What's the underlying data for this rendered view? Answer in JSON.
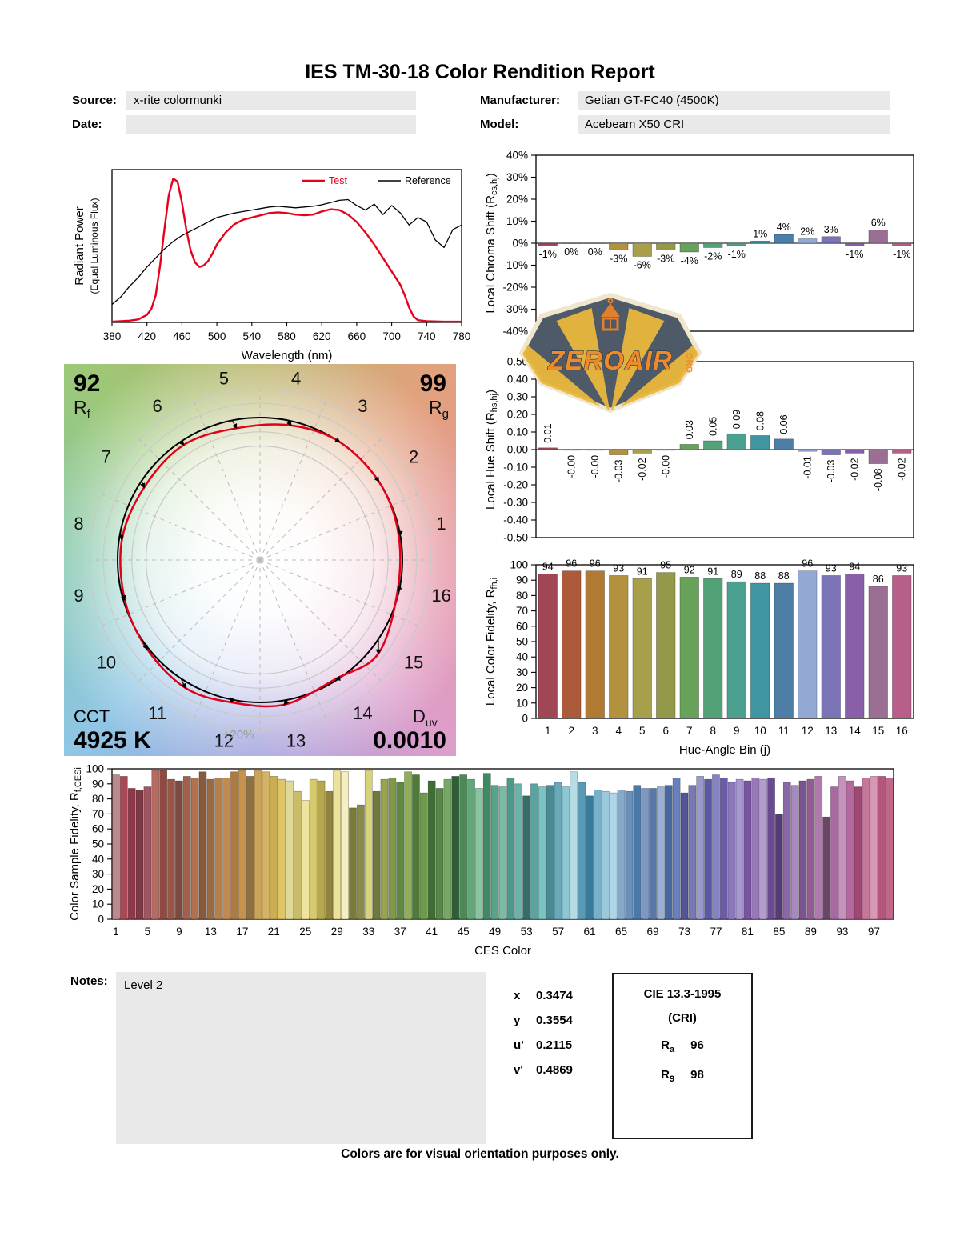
{
  "title": "IES TM-30-18 Color Rendition Report",
  "header": {
    "source_label": "Source:",
    "source_value": "x-rite colormunki",
    "date_label": "Date:",
    "date_value": "",
    "manufacturer_label": "Manufacturer:",
    "manufacturer_value": "Getian GT-FC40 (4500K)",
    "model_label": "Model:",
    "model_value": "Acebeam X50 CRI"
  },
  "watermark": {
    "text": "ZEROAIR",
    "suffix": ".ORG"
  },
  "cvg": {
    "rf": {
      "value": "92",
      "label": "R",
      "sub": "f"
    },
    "rg": {
      "value": "99",
      "label": "R",
      "sub": "g"
    },
    "cct": {
      "label": "CCT",
      "value": "4925 K"
    },
    "duv": {
      "label": "D",
      "sub": "uv",
      "value": "0.0010"
    },
    "ring_label": "+20%",
    "bin_numbers": [
      "1",
      "2",
      "3",
      "4",
      "5",
      "6",
      "7",
      "8",
      "9",
      "10",
      "11",
      "12",
      "13",
      "14",
      "15",
      "16"
    ]
  },
  "chart_data": [
    {
      "id": "spd",
      "type": "line",
      "xlabel": "Wavelength (nm)",
      "ylabel_lines": [
        "Radiant Power",
        "(Equal Luminous Flux)"
      ],
      "xlim": [
        380,
        780
      ],
      "ylim": [
        0,
        1.02
      ],
      "x_ticks": [
        380,
        420,
        460,
        500,
        540,
        580,
        620,
        660,
        700,
        740,
        780
      ],
      "legend": [
        {
          "name": "Test",
          "color": "#e8001c"
        },
        {
          "name": "Reference",
          "color": "#000000"
        }
      ],
      "series": [
        {
          "name": "Test",
          "color": "#e8001c",
          "width": 2.4,
          "x": [
            380,
            390,
            400,
            410,
            420,
            425,
            430,
            435,
            440,
            445,
            450,
            455,
            460,
            465,
            470,
            475,
            480,
            485,
            490,
            495,
            500,
            510,
            520,
            530,
            540,
            550,
            560,
            570,
            580,
            590,
            600,
            610,
            620,
            630,
            640,
            650,
            660,
            670,
            680,
            690,
            700,
            710,
            715,
            720,
            725,
            730,
            740,
            760,
            780
          ],
          "y": [
            0.005,
            0.008,
            0.012,
            0.02,
            0.05,
            0.09,
            0.18,
            0.38,
            0.62,
            0.85,
            0.96,
            0.94,
            0.8,
            0.62,
            0.48,
            0.4,
            0.37,
            0.38,
            0.41,
            0.46,
            0.52,
            0.6,
            0.655,
            0.685,
            0.7,
            0.715,
            0.73,
            0.735,
            0.73,
            0.72,
            0.715,
            0.72,
            0.74,
            0.755,
            0.75,
            0.72,
            0.67,
            0.6,
            0.52,
            0.43,
            0.34,
            0.25,
            0.18,
            0.1,
            0.04,
            0.015,
            0.008,
            0.005,
            0.005
          ]
        },
        {
          "name": "Reference",
          "color": "#000000",
          "width": 1.3,
          "x": [
            380,
            390,
            400,
            410,
            420,
            430,
            440,
            450,
            460,
            470,
            480,
            490,
            500,
            510,
            520,
            530,
            540,
            550,
            560,
            570,
            580,
            590,
            600,
            610,
            620,
            630,
            640,
            650,
            660,
            670,
            680,
            690,
            700,
            710,
            720,
            730,
            740,
            750,
            760,
            770,
            780
          ],
          "y": [
            0.12,
            0.17,
            0.24,
            0.3,
            0.37,
            0.43,
            0.49,
            0.54,
            0.58,
            0.61,
            0.64,
            0.67,
            0.7,
            0.715,
            0.73,
            0.74,
            0.75,
            0.76,
            0.77,
            0.775,
            0.77,
            0.765,
            0.77,
            0.775,
            0.785,
            0.8,
            0.815,
            0.82,
            0.78,
            0.75,
            0.79,
            0.72,
            0.78,
            0.73,
            0.65,
            0.7,
            0.67,
            0.55,
            0.5,
            0.62,
            0.65
          ]
        }
      ]
    },
    {
      "id": "chroma_shift",
      "type": "bar",
      "ylabel_parts": [
        {
          "t": "Local Chroma Shift (R"
        },
        {
          "t": "cs,hj",
          "sub": true
        },
        {
          "t": ")"
        }
      ],
      "ylim": [
        -40,
        40
      ],
      "y_ticks": [
        {
          "v": 40,
          "label": "40%"
        },
        {
          "v": 30,
          "label": "30%"
        },
        {
          "v": 20,
          "label": "20%"
        },
        {
          "v": 10,
          "label": "10%"
        },
        {
          "v": 0,
          "label": "0%"
        },
        {
          "v": -10,
          "label": "-10%"
        },
        {
          "v": -20,
          "label": "-20%"
        },
        {
          "v": -30,
          "label": "-30%"
        },
        {
          "v": -40,
          "label": "-40%"
        }
      ],
      "categories": [
        1,
        2,
        3,
        4,
        5,
        6,
        7,
        8,
        9,
        10,
        11,
        12,
        13,
        14,
        15,
        16
      ],
      "values": [
        -1,
        0,
        0,
        -3,
        -6,
        -3,
        -4,
        -2,
        -1,
        1,
        4,
        2,
        3,
        -1,
        6,
        -1
      ],
      "value_labels": [
        "-1%",
        "0%",
        "0%",
        "-3%",
        "-6%",
        "-3%",
        "-4%",
        "-2%",
        "-1%",
        "1%",
        "4%",
        "2%",
        "3%",
        "-1%",
        "6%",
        "-1%"
      ],
      "label_style": "horizontal",
      "colors": [
        "#a14655",
        "#ad5a3b",
        "#b07a33",
        "#b2923f",
        "#a89f4a",
        "#94994a",
        "#68a159",
        "#52a177",
        "#4ba190",
        "#3f96a2",
        "#4d7ea6",
        "#93a9d4",
        "#7a73b5",
        "#8a5fa9",
        "#9a6f93",
        "#b75f88"
      ]
    },
    {
      "id": "hue_shift",
      "type": "bar",
      "ylabel_parts": [
        {
          "t": "Local Hue Shift (R"
        },
        {
          "t": "hs,hj",
          "sub": true
        },
        {
          "t": ")"
        }
      ],
      "ylim": [
        -0.5,
        0.5
      ],
      "y_ticks": [
        {
          "v": 0.5,
          "label": "0.50"
        },
        {
          "v": 0.4,
          "label": "0.40"
        },
        {
          "v": 0.3,
          "label": "0.30"
        },
        {
          "v": 0.2,
          "label": "0.20"
        },
        {
          "v": 0.1,
          "label": "0.10"
        },
        {
          "v": 0,
          "label": "0.00"
        },
        {
          "v": -0.1,
          "label": "-0.10"
        },
        {
          "v": -0.2,
          "label": "-0.20"
        },
        {
          "v": -0.3,
          "label": "-0.30"
        },
        {
          "v": -0.4,
          "label": "-0.40"
        },
        {
          "v": -0.5,
          "label": "-0.50"
        }
      ],
      "categories": [
        1,
        2,
        3,
        4,
        5,
        6,
        7,
        8,
        9,
        10,
        11,
        12,
        13,
        14,
        15,
        16
      ],
      "values": [
        0.01,
        -0.004,
        -0.004,
        -0.03,
        -0.02,
        -0.004,
        0.03,
        0.05,
        0.09,
        0.08,
        0.06,
        -0.01,
        -0.03,
        -0.02,
        -0.08,
        -0.02
      ],
      "value_labels": [
        "0.01",
        "-0.00",
        "-0.00",
        "-0.03",
        "-0.02",
        "-0.00",
        "0.03",
        "0.05",
        "0.09",
        "0.08",
        "0.06",
        "-0.01",
        "-0.03",
        "-0.02",
        "-0.08",
        "-0.02"
      ],
      "label_style": "vertical",
      "colors": [
        "#a14655",
        "#ad5a3b",
        "#b07a33",
        "#b2923f",
        "#a89f4a",
        "#94994a",
        "#68a159",
        "#52a177",
        "#4ba190",
        "#3f96a2",
        "#4d7ea6",
        "#93a9d4",
        "#7a73b5",
        "#8a5fa9",
        "#9a6f93",
        "#b75f88"
      ]
    },
    {
      "id": "local_fidelity",
      "type": "bar",
      "xlabel": "Hue-Angle Bin (j)",
      "ylabel_parts": [
        {
          "t": "Local Color Fidelity, R"
        },
        {
          "t": "fh,i",
          "sub": true
        }
      ],
      "ylim": [
        0,
        100
      ],
      "y_ticks": [
        {
          "v": 100,
          "label": "100"
        },
        {
          "v": 90,
          "label": "90"
        },
        {
          "v": 80,
          "label": "80"
        },
        {
          "v": 70,
          "label": "70"
        },
        {
          "v": 60,
          "label": "60"
        },
        {
          "v": 50,
          "label": "50"
        },
        {
          "v": 40,
          "label": "40"
        },
        {
          "v": 30,
          "label": "30"
        },
        {
          "v": 20,
          "label": "20"
        },
        {
          "v": 10,
          "label": "10"
        },
        {
          "v": 0,
          "label": "0"
        }
      ],
      "categories": [
        1,
        2,
        3,
        4,
        5,
        6,
        7,
        8,
        9,
        10,
        11,
        12,
        13,
        14,
        15,
        16
      ],
      "values": [
        94,
        96,
        96,
        93,
        91,
        95,
        92,
        91,
        89,
        88,
        88,
        96,
        93,
        94,
        86,
        93
      ],
      "value_labels": [
        "94",
        "96",
        "96",
        "93",
        "91",
        "95",
        "92",
        "91",
        "89",
        "88",
        "88",
        "96",
        "93",
        "94",
        "86",
        "93"
      ],
      "label_style": "horizontal",
      "show_category_ticks": true,
      "colors": [
        "#a14655",
        "#ad5a3b",
        "#b07a33",
        "#b2923f",
        "#a89f4a",
        "#94994a",
        "#68a159",
        "#52a177",
        "#4ba190",
        "#3f96a2",
        "#4d7ea6",
        "#93a9d4",
        "#7a73b5",
        "#8a5fa9",
        "#9a6f93",
        "#b75f88"
      ]
    },
    {
      "id": "ces",
      "type": "bar",
      "xlabel": "CES Color",
      "ylabel_parts": [
        {
          "t": "Color Sample Fidelity, R"
        },
        {
          "t": "f,CESi",
          "sub": true
        }
      ],
      "ylim": [
        0,
        100
      ],
      "y_ticks": [
        {
          "v": 100,
          "label": "100"
        },
        {
          "v": 90,
          "label": "90"
        },
        {
          "v": 80,
          "label": "80"
        },
        {
          "v": 70,
          "label": "70"
        },
        {
          "v": 60,
          "label": "60"
        },
        {
          "v": 50,
          "label": "50"
        },
        {
          "v": 40,
          "label": "40"
        },
        {
          "v": 30,
          "label": "30"
        },
        {
          "v": 20,
          "label": "20"
        },
        {
          "v": 10,
          "label": "10"
        },
        {
          "v": 0,
          "label": "0"
        }
      ],
      "x_tick_positions": [
        1,
        5,
        9,
        13,
        17,
        21,
        25,
        29,
        33,
        37,
        41,
        45,
        49,
        53,
        57,
        61,
        65,
        69,
        73,
        77,
        81,
        85,
        89,
        93,
        97
      ],
      "values": [
        96,
        95,
        87,
        86,
        88,
        99,
        99,
        93,
        92,
        95,
        94,
        98,
        93,
        94,
        94,
        98,
        99,
        95,
        99,
        98,
        95,
        93,
        92,
        85,
        79,
        93,
        92,
        85,
        99,
        98,
        74,
        76,
        99,
        85,
        93,
        94,
        91,
        98,
        96,
        84,
        92,
        87,
        93,
        95,
        96,
        93,
        87,
        97,
        89,
        88,
        94,
        90,
        82,
        90,
        88,
        89,
        91,
        88,
        98,
        91,
        82,
        86,
        85,
        84,
        86,
        85,
        89,
        87,
        87,
        88,
        89,
        94,
        84,
        89,
        95,
        93,
        96,
        94,
        91,
        93,
        92,
        94,
        93,
        94,
        70,
        91,
        89,
        92,
        93,
        95,
        68,
        88,
        95,
        92,
        88,
        94,
        95,
        95,
        94
      ],
      "label_style": "none",
      "bar_frac": 0.92,
      "colors": [
        "#bb8a8f",
        "#a84955",
        "#92374a",
        "#7e3a44",
        "#a15560",
        "#b56a62",
        "#8e4a42",
        "#9b5545",
        "#7c4a3e",
        "#a4604a",
        "#b4714f",
        "#8a5a3c",
        "#9a6a45",
        "#b57f4a",
        "#c08a50",
        "#ad7a42",
        "#c4944e",
        "#8f7040",
        "#caa45a",
        "#d4b266",
        "#c9ae52",
        "#e0c468",
        "#ded998",
        "#c9bc6a",
        "#efe3a0",
        "#d6c96e",
        "#b5a84e",
        "#8f8440",
        "#ece29a",
        "#f4eec2",
        "#7a7a3a",
        "#8a8a4a",
        "#d8d27a",
        "#6f7a38",
        "#9aa44e",
        "#7e9a46",
        "#5f8a3e",
        "#8fae5a",
        "#4f7a38",
        "#6e9a4c",
        "#3f6e34",
        "#58854a",
        "#78a868",
        "#2f5e34",
        "#4a8a54",
        "#5fa878",
        "#88c4a0",
        "#3f8a64",
        "#58a488",
        "#78bca4",
        "#4a9a8a",
        "#68b4a8",
        "#356e66",
        "#58a4a0",
        "#78c4c0",
        "#4a8a94",
        "#68aab8",
        "#8cc8d4",
        "#b8dce4",
        "#5a9ab4",
        "#3a7a9a",
        "#78b0c8",
        "#9cc8dc",
        "#b0d4e8",
        "#88a8c8",
        "#6890b8",
        "#4a78a8",
        "#7a98c4",
        "#5878a8",
        "#98b0d4",
        "#4a68a0",
        "#6880c0",
        "#54549a",
        "#7878b4",
        "#9898cc",
        "#5a5aa4",
        "#8484c4",
        "#6a5aa8",
        "#8a78bc",
        "#a898d0",
        "#7a54a0",
        "#9878b8",
        "#b49cd0",
        "#6a4a90",
        "#583a74",
        "#8a68a8",
        "#a888c0",
        "#7a5490",
        "#945a94",
        "#b078ac",
        "#6e4468",
        "#a868a0",
        "#c890bc",
        "#b46a9e",
        "#a04874",
        "#c4789c",
        "#d898b4",
        "#b4577e",
        "#c06888"
      ]
    }
  ],
  "notes": {
    "label": "Notes:",
    "value": "Level 2"
  },
  "chromaticity": {
    "rows": [
      {
        "label": "x",
        "value": "0.3474"
      },
      {
        "label": "y",
        "value": "0.3554"
      },
      {
        "label": "u'",
        "value": "0.2115"
      },
      {
        "label": "v'",
        "value": "0.4869"
      }
    ]
  },
  "cie_box": {
    "title": "CIE 13.3-1995",
    "subtitle": "(CRI)",
    "rows": [
      {
        "label": "R",
        "sub": "a",
        "value": "96"
      },
      {
        "label": "R",
        "sub": "9",
        "value": "98"
      }
    ]
  },
  "footer": "Colors are for visual orientation purposes only."
}
